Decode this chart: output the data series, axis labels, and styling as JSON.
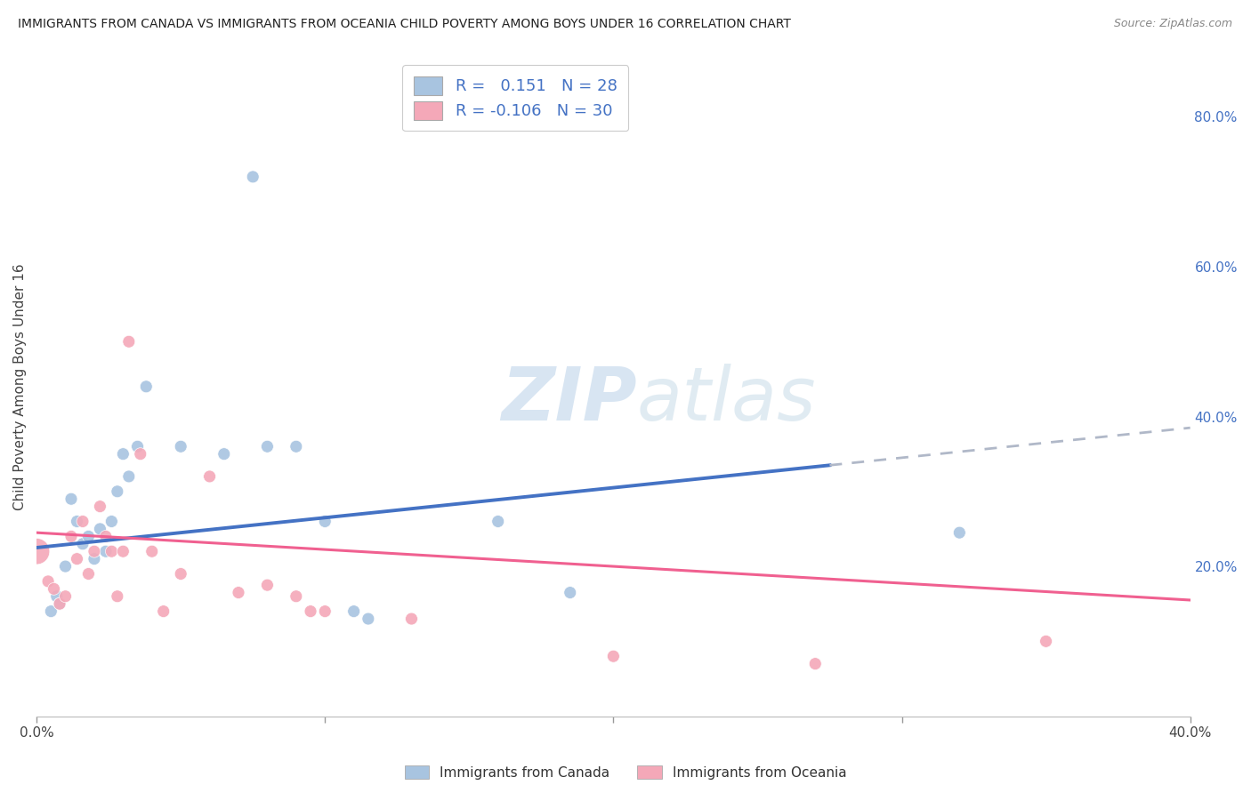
{
  "title": "IMMIGRANTS FROM CANADA VS IMMIGRANTS FROM OCEANIA CHILD POVERTY AMONG BOYS UNDER 16 CORRELATION CHART",
  "source": "Source: ZipAtlas.com",
  "ylabel": "Child Poverty Among Boys Under 16",
  "xlim": [
    0.0,
    0.4
  ],
  "ylim": [
    0.0,
    0.88
  ],
  "canada_R": 0.151,
  "canada_N": 28,
  "oceania_R": -0.106,
  "oceania_N": 30,
  "canada_color": "#a8c4e0",
  "oceania_color": "#f4a8b8",
  "canada_line_color": "#4472c4",
  "oceania_line_color": "#f06090",
  "trend_line_dashed_color": "#b0b8c8",
  "watermark_color": "#d0e0f0",
  "canada_points_x": [
    0.005,
    0.007,
    0.008,
    0.01,
    0.012,
    0.014,
    0.016,
    0.018,
    0.02,
    0.022,
    0.024,
    0.026,
    0.028,
    0.03,
    0.032,
    0.035,
    0.038,
    0.05,
    0.065,
    0.075,
    0.08,
    0.09,
    0.1,
    0.11,
    0.115,
    0.16,
    0.185,
    0.32
  ],
  "canada_points_y": [
    0.14,
    0.16,
    0.15,
    0.2,
    0.29,
    0.26,
    0.23,
    0.24,
    0.21,
    0.25,
    0.22,
    0.26,
    0.3,
    0.35,
    0.32,
    0.36,
    0.44,
    0.36,
    0.35,
    0.72,
    0.36,
    0.36,
    0.26,
    0.14,
    0.13,
    0.26,
    0.165,
    0.245
  ],
  "canada_sizes": [
    100,
    100,
    100,
    100,
    100,
    100,
    100,
    100,
    100,
    100,
    100,
    100,
    100,
    100,
    100,
    100,
    100,
    100,
    100,
    100,
    100,
    100,
    100,
    100,
    100,
    100,
    100,
    100
  ],
  "oceania_points_x": [
    0.0,
    0.004,
    0.006,
    0.008,
    0.01,
    0.012,
    0.014,
    0.016,
    0.018,
    0.02,
    0.022,
    0.024,
    0.026,
    0.028,
    0.03,
    0.032,
    0.036,
    0.04,
    0.044,
    0.05,
    0.06,
    0.07,
    0.08,
    0.09,
    0.095,
    0.1,
    0.13,
    0.2,
    0.27,
    0.35
  ],
  "oceania_points_y": [
    0.22,
    0.18,
    0.17,
    0.15,
    0.16,
    0.24,
    0.21,
    0.26,
    0.19,
    0.22,
    0.28,
    0.24,
    0.22,
    0.16,
    0.22,
    0.5,
    0.35,
    0.22,
    0.14,
    0.19,
    0.32,
    0.165,
    0.175,
    0.16,
    0.14,
    0.14,
    0.13,
    0.08,
    0.07,
    0.1
  ],
  "oceania_sizes": [
    450,
    100,
    100,
    100,
    100,
    100,
    100,
    100,
    100,
    100,
    100,
    100,
    100,
    100,
    100,
    100,
    100,
    100,
    100,
    100,
    100,
    100,
    100,
    100,
    100,
    100,
    100,
    100,
    100,
    100
  ],
  "canada_trend_x0": 0.0,
  "canada_trend_y0": 0.225,
  "canada_trend_x1": 0.275,
  "canada_trend_y1": 0.335,
  "canada_trend_dashed_x0": 0.275,
  "canada_trend_dashed_y0": 0.335,
  "canada_trend_dashed_x1": 0.4,
  "canada_trend_dashed_y1": 0.385,
  "oceania_trend_x0": 0.0,
  "oceania_trend_y0": 0.245,
  "oceania_trend_x1": 0.4,
  "oceania_trend_y1": 0.155,
  "yticks_right": [
    0.2,
    0.4,
    0.6,
    0.8
  ],
  "ytick_labels_right": [
    "20.0%",
    "40.0%",
    "60.0%",
    "80.0%"
  ],
  "grid_color": "#cccccc",
  "background_color": "#ffffff"
}
